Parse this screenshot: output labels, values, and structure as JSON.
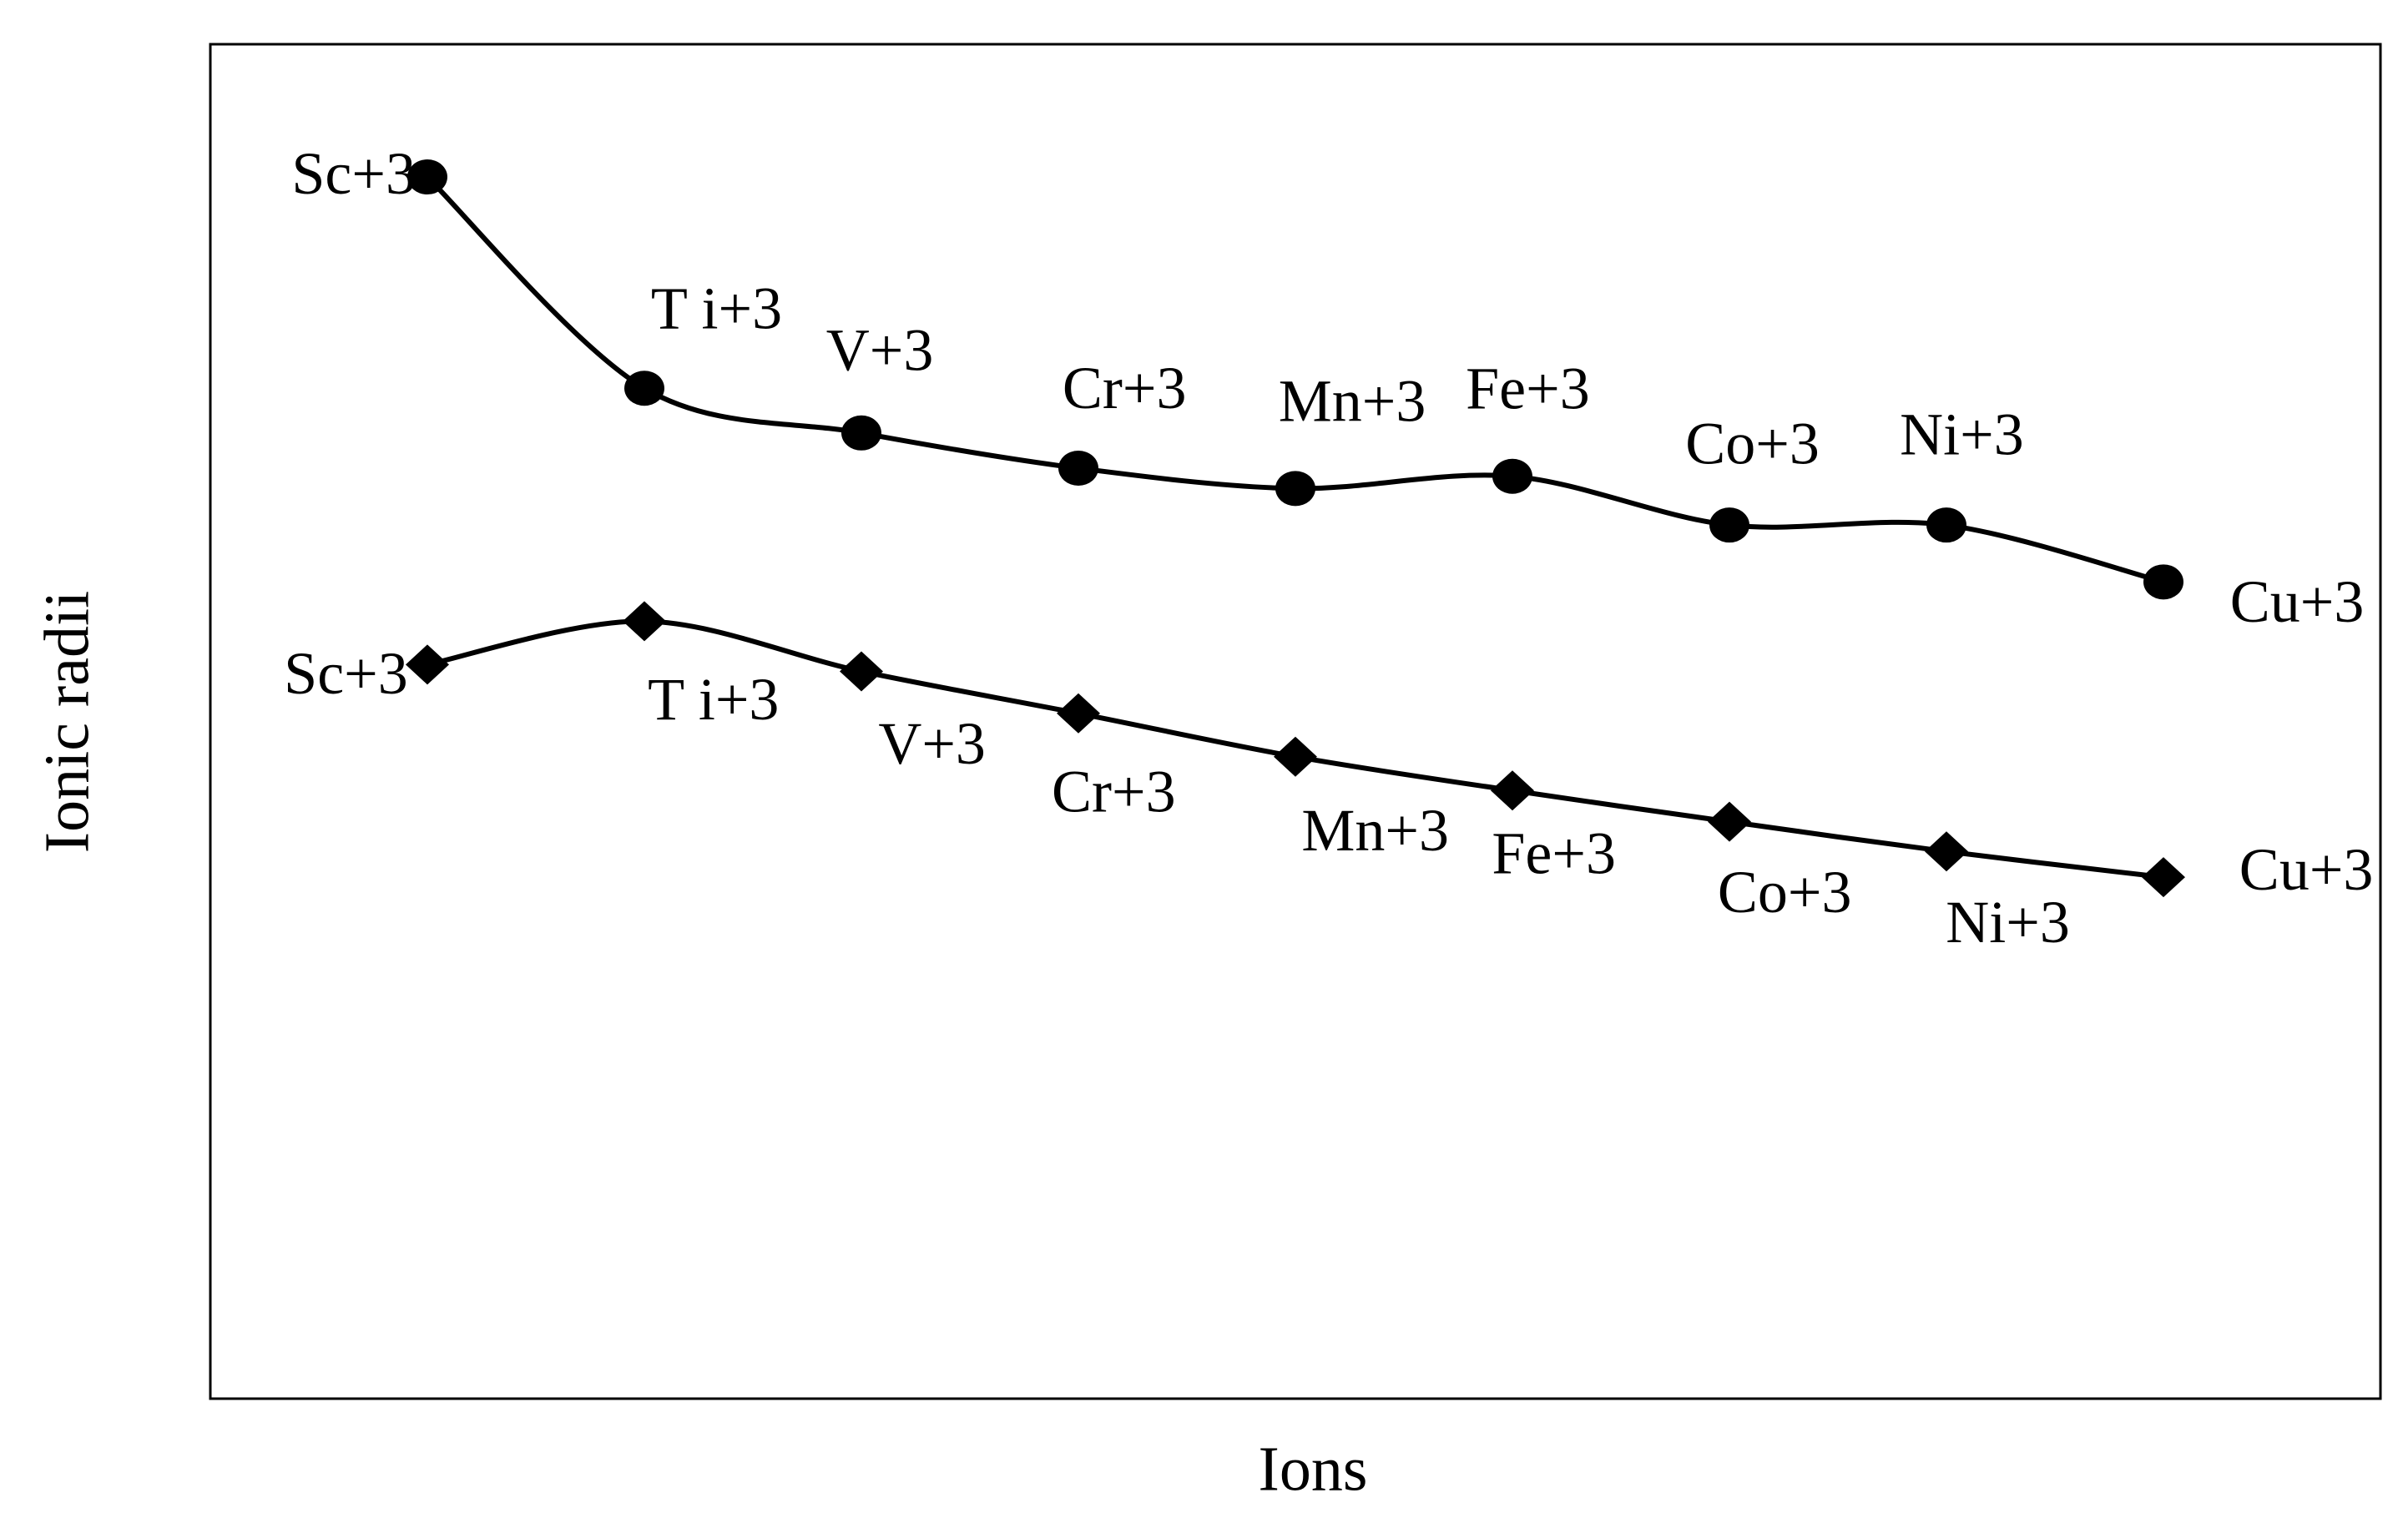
{
  "chart_data": {
    "type": "line",
    "xlabel": "Ions",
    "ylabel": "Ionic radii",
    "categories": [
      "Sc+3",
      "T i+3",
      "V+3",
      "Cr+3",
      "Mn+3",
      "Fe+3",
      "Co+3",
      "Ni+3",
      "Cu+3"
    ],
    "series": [
      {
        "color": "#000000",
        "marker": "circle",
        "values": [
          90.2,
          74.6,
          71.3,
          68.7,
          67.2,
          68.1,
          64.5,
          64.5,
          60.3
        ]
      },
      {
        "color": "#000000",
        "marker": "diamond",
        "values": [
          54.2,
          57.4,
          53.7,
          50.6,
          47.4,
          44.9,
          42.6,
          40.4,
          38.5
        ]
      }
    ],
    "ylim": [
      0,
      100
    ],
    "grid": false
  }
}
